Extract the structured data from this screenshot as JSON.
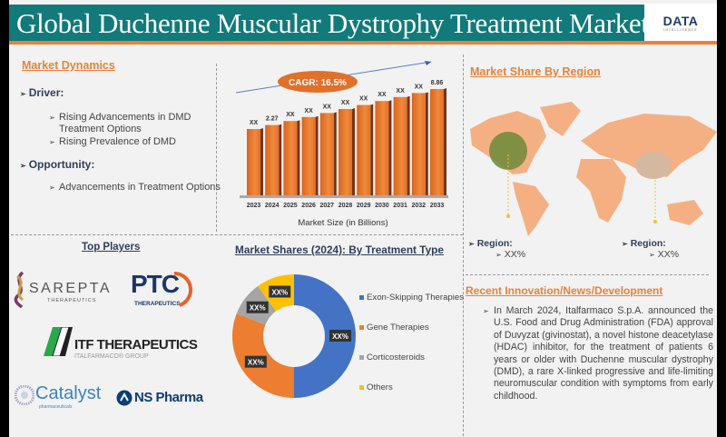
{
  "header": {
    "title": "Global Duchenne Muscular Dystrophy Treatment Market",
    "logo_text": "DATA",
    "logo_subtext": "INTELLIGENCE"
  },
  "market_dynamics": {
    "title": "Market Dynamics",
    "driver_label": "Driver:",
    "drivers": [
      "Rising Advancements in DMD Treatment Options",
      "Rising Prevalence of DMD"
    ],
    "opportunity_label": "Opportunity:",
    "opportunities": [
      "Advancements in Treatment Options"
    ]
  },
  "colors": {
    "teal": "#127a7a",
    "orange": "#e8823a",
    "bar": "#e0702a",
    "blue": "#4472c4",
    "gray": "#a5a5a5",
    "yellow": "#ffc000",
    "map": "#f4b083"
  },
  "chart_data": [
    {
      "type": "bar",
      "title": "",
      "xlabel": "Market Size (in Billions)",
      "categories": [
        "2023",
        "2024",
        "2025",
        "2026",
        "2027",
        "2028",
        "2029",
        "2030",
        "2031",
        "2032",
        "2033"
      ],
      "values": [
        null,
        2.27,
        null,
        null,
        null,
        null,
        null,
        null,
        null,
        null,
        8.86
      ],
      "data_labels": [
        "XX",
        "2.27",
        "XX",
        "XX",
        "XX",
        "XX",
        "XX",
        "XX",
        "XX",
        "XX",
        "8.86"
      ],
      "annotation": "CAGR: 16.5%"
    },
    {
      "type": "pie",
      "title": "Market Shares (2024): By Treatment Type",
      "donut": true,
      "categories": [
        "Exon-Skipping Therapies",
        "Gene Therapies",
        "Corticosteroids",
        "Others"
      ],
      "values": [
        50,
        31,
        9,
        10
      ],
      "data_labels": [
        "XX%",
        "XX%",
        "XX%",
        "XX%"
      ],
      "colors": [
        "#4472c4",
        "#ed7d31",
        "#a5a5a5",
        "#ffc000"
      ],
      "legend": "right"
    }
  ],
  "top_players": {
    "title": "Top Players",
    "companies": [
      {
        "name": "SAREPTA",
        "sub": "THERAPEUTICS"
      },
      {
        "name": "PTC",
        "sub": "THERAPEUTICS"
      },
      {
        "name": "ITF THERAPEUTICS",
        "sub": "ITALFARMACO® GROUP"
      },
      {
        "name": "Catalyst",
        "sub": "pharmaceuticals"
      },
      {
        "name": "NS Pharma",
        "sub": ""
      }
    ]
  },
  "region": {
    "title": "Market Share By Region",
    "items": [
      {
        "label": "Region:",
        "value": "XX%"
      },
      {
        "label": "Region:",
        "value": "XX%"
      }
    ]
  },
  "news": {
    "title": "Recent Innovation/News/Development",
    "text": "In March 2024, Italfarmaco S.p.A. announced the U.S. Food and Drug Administration (FDA) approval of Duvyzat (givinostat), a novel histone deacetylase (HDAC) inhibitor, for the treatment of patients 6 years or older with Duchenne muscular dystrophy (DMD), a rare X-linked progressive and life-limiting neuromuscular condition with symptoms from early childhood."
  }
}
